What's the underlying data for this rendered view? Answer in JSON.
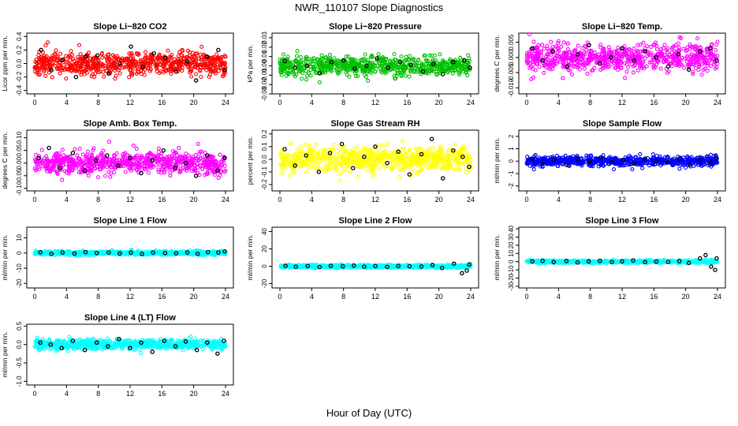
{
  "page": {
    "title": "NWR_110107  Slope Diagnostics",
    "xlabel": "Hour of Day (UTC)"
  },
  "chart_data": [
    {
      "type": "scatter",
      "title": "Slope Li−820 CO2",
      "ylabel": "Licor ppm per min.",
      "xlim": [
        0,
        24
      ],
      "ylim": [
        -0.45,
        0.45
      ],
      "xticks": [
        0,
        4,
        8,
        12,
        16,
        20,
        24
      ],
      "yticks": [
        -0.4,
        -0.2,
        0.0,
        0.2,
        0.4
      ],
      "ytick_labels": [
        "-0.4",
        "-0.2",
        "0.0",
        "0.2",
        "0.4"
      ],
      "color": "#ff0000",
      "spread": 0.16,
      "seed": 11,
      "series": [
        {
          "color": "#000000",
          "points": [
            [
              0.8,
              0.2
            ],
            [
              2.1,
              -0.1
            ],
            [
              3.5,
              0.05
            ],
            [
              5.2,
              -0.2
            ],
            [
              6.4,
              0.1
            ],
            [
              7.9,
              0.12
            ],
            [
              9.3,
              -0.15
            ],
            [
              10.7,
              0.0
            ],
            [
              12.1,
              0.25
            ],
            [
              13.6,
              -0.05
            ],
            [
              15.0,
              0.15
            ],
            [
              16.4,
              0.08
            ],
            [
              17.8,
              -0.12
            ],
            [
              19.2,
              0.03
            ],
            [
              20.3,
              -0.25
            ],
            [
              21.7,
              0.1
            ],
            [
              23.1,
              0.2
            ],
            [
              23.9,
              -0.1
            ]
          ]
        }
      ]
    },
    {
      "type": "scatter",
      "title": "Slope Li−820 Pressure",
      "ylabel": "kPa per min.",
      "xlim": [
        0,
        24
      ],
      "ylim": [
        -0.03,
        0.035
      ],
      "xticks": [
        0,
        4,
        8,
        12,
        16,
        20,
        24
      ],
      "yticks": [
        -0.03,
        -0.02,
        -0.01,
        0.0,
        0.01,
        0.02,
        0.03
      ],
      "ytick_labels": [
        "-0.03",
        "-0.02",
        "-0.01",
        "0.00",
        "0.01",
        "0.02",
        "0.03"
      ],
      "color": "#00c000",
      "spread": 0.009,
      "seed": 22,
      "series": [
        {
          "color": "#000000",
          "points": [
            [
              0.6,
              0.005
            ],
            [
              1.9,
              -0.002
            ],
            [
              3.4,
              0.0
            ],
            [
              5.0,
              -0.008
            ],
            [
              6.5,
              0.004
            ],
            [
              8.0,
              0.006
            ],
            [
              9.4,
              -0.003
            ],
            [
              10.9,
              0.0
            ],
            [
              12.2,
              0.008
            ],
            [
              13.6,
              -0.002
            ],
            [
              15.1,
              0.004
            ],
            [
              16.5,
              0.001
            ],
            [
              18.0,
              -0.006
            ],
            [
              19.3,
              0.002
            ],
            [
              20.5,
              -0.009
            ],
            [
              21.8,
              0.004
            ],
            [
              23.2,
              0.006
            ],
            [
              23.9,
              -0.002
            ]
          ]
        }
      ]
    },
    {
      "type": "scatter",
      "title": "Slope Li−820 Temp.",
      "ylabel": "degrees C per min.",
      "xlim": [
        0,
        24
      ],
      "ylim": [
        -0.012,
        0.008
      ],
      "xticks": [
        0,
        4,
        8,
        12,
        16,
        20,
        24
      ],
      "yticks": [
        -0.01,
        -0.005,
        0.0,
        0.005
      ],
      "ytick_labels": [
        "-0.010",
        "-0.005",
        "0.000",
        "0.005"
      ],
      "color": "#ff00ff",
      "spread": 0.004,
      "seed": 33,
      "series": [
        {
          "color": "#000000",
          "points": [
            [
              0.7,
              0.003
            ],
            [
              2.0,
              -0.001
            ],
            [
              3.3,
              0.002
            ],
            [
              5.1,
              -0.003
            ],
            [
              6.4,
              0.001
            ],
            [
              7.8,
              0.004
            ],
            [
              9.2,
              -0.002
            ],
            [
              10.6,
              0.0
            ],
            [
              12.0,
              0.003
            ],
            [
              13.5,
              -0.001
            ],
            [
              14.9,
              0.002
            ],
            [
              16.3,
              0.0
            ],
            [
              17.8,
              -0.003
            ],
            [
              19.1,
              0.001
            ],
            [
              20.4,
              -0.004
            ],
            [
              21.8,
              0.002
            ],
            [
              23.1,
              0.003
            ],
            [
              23.9,
              -0.001
            ]
          ]
        }
      ]
    },
    {
      "type": "scatter",
      "title": "Slope Amb. Box Temp.",
      "ylabel": "degrees C per min.",
      "xlim": [
        0,
        24
      ],
      "ylim": [
        -0.11,
        0.13
      ],
      "xticks": [
        0,
        4,
        8,
        12,
        16,
        20,
        24
      ],
      "yticks": [
        -0.1,
        -0.05,
        0.0,
        0.05,
        0.1
      ],
      "ytick_labels": [
        "-0.10",
        "-0.05",
        "0.00",
        "0.05",
        "0.10"
      ],
      "color": "#ff00ff",
      "spread": 0.04,
      "seed": 44,
      "series": [
        {
          "color": "#000000",
          "points": [
            [
              0.5,
              0.02
            ],
            [
              1.8,
              0.06
            ],
            [
              3.2,
              -0.02
            ],
            [
              4.8,
              0.04
            ],
            [
              6.3,
              -0.03
            ],
            [
              7.7,
              0.01
            ],
            [
              9.1,
              0.03
            ],
            [
              10.5,
              -0.01
            ],
            [
              12.0,
              0.02
            ],
            [
              13.4,
              -0.04
            ],
            [
              14.8,
              0.01
            ],
            [
              16.2,
              0.05
            ],
            [
              17.7,
              -0.02
            ],
            [
              19.0,
              0.0
            ],
            [
              20.3,
              -0.05
            ],
            [
              21.7,
              0.03
            ],
            [
              23.0,
              -0.03
            ],
            [
              23.9,
              0.02
            ]
          ]
        }
      ]
    },
    {
      "type": "scatter",
      "title": "Slope Gas Stream RH",
      "ylabel": "percent per min.",
      "xlim": [
        0,
        24
      ],
      "ylim": [
        -0.25,
        0.23
      ],
      "xticks": [
        0,
        4,
        8,
        12,
        16,
        20,
        24
      ],
      "yticks": [
        -0.2,
        -0.1,
        0.0,
        0.1,
        0.2
      ],
      "ytick_labels": [
        "-0.2",
        "-0.1",
        "0.0",
        "0.1",
        "0.2"
      ],
      "color": "#ffff00",
      "spread": 0.09,
      "seed": 55,
      "series": [
        {
          "color": "#000000",
          "points": [
            [
              0.6,
              0.08
            ],
            [
              1.9,
              -0.05
            ],
            [
              3.3,
              0.03
            ],
            [
              4.9,
              -0.1
            ],
            [
              6.3,
              0.05
            ],
            [
              7.8,
              0.12
            ],
            [
              9.2,
              -0.07
            ],
            [
              10.6,
              0.02
            ],
            [
              12.0,
              0.1
            ],
            [
              13.5,
              -0.03
            ],
            [
              14.9,
              0.06
            ],
            [
              16.3,
              -0.12
            ],
            [
              17.8,
              0.04
            ],
            [
              19.1,
              0.16
            ],
            [
              20.5,
              -0.15
            ],
            [
              21.8,
              0.07
            ],
            [
              23.0,
              0.02
            ],
            [
              23.8,
              -0.06
            ]
          ]
        }
      ]
    },
    {
      "type": "scatter",
      "title": "Slope Sample Flow",
      "ylabel": "ml/min per min.",
      "xlim": [
        0,
        24
      ],
      "ylim": [
        -2.4,
        2.5
      ],
      "xticks": [
        0,
        4,
        8,
        12,
        16,
        20,
        24
      ],
      "yticks": [
        -2,
        -1,
        0,
        1,
        2
      ],
      "ytick_labels": [
        "-2",
        "-1",
        "0",
        "1",
        "2"
      ],
      "color": "#0000ff",
      "spread": 0.35,
      "seed": 66,
      "series": [
        {
          "color": "#000000",
          "points": [
            [
              0.7,
              0.2
            ],
            [
              2.0,
              -0.2
            ],
            [
              3.4,
              0.1
            ],
            [
              5.0,
              -0.3
            ],
            [
              6.4,
              0.2
            ],
            [
              7.9,
              0.0
            ],
            [
              9.3,
              0.3
            ],
            [
              10.7,
              -0.1
            ],
            [
              12.1,
              0.1
            ],
            [
              13.5,
              -0.2
            ],
            [
              14.9,
              0.2
            ],
            [
              16.3,
              0.0
            ],
            [
              17.8,
              -0.1
            ],
            [
              19.2,
              0.2
            ],
            [
              20.5,
              -0.3
            ],
            [
              21.8,
              0.1
            ],
            [
              23.1,
              -0.1
            ],
            [
              23.9,
              0.2
            ]
          ]
        }
      ]
    },
    {
      "type": "scatter",
      "title": "Slope Line 1 Flow",
      "ylabel": "ml/min per min.",
      "xlim": [
        0,
        24
      ],
      "ylim": [
        -23,
        17
      ],
      "xticks": [
        0,
        4,
        8,
        12,
        16,
        20,
        24
      ],
      "yticks": [
        -20,
        -10,
        0,
        10
      ],
      "ytick_labels": [
        "-20",
        "-10",
        "0",
        "10"
      ],
      "color": "#00ffff",
      "spread": 1.2,
      "seed": 77,
      "series": [
        {
          "color": "#000000",
          "points": [
            [
              0.7,
              0.5
            ],
            [
              2.1,
              -0.5
            ],
            [
              3.5,
              0.3
            ],
            [
              5.0,
              -0.4
            ],
            [
              6.4,
              0.6
            ],
            [
              7.8,
              0.0
            ],
            [
              9.3,
              0.4
            ],
            [
              10.7,
              -0.3
            ],
            [
              12.1,
              0.2
            ],
            [
              13.5,
              -0.6
            ],
            [
              14.9,
              0.3
            ],
            [
              16.4,
              0.0
            ],
            [
              17.8,
              -0.2
            ],
            [
              19.2,
              0.4
            ],
            [
              20.5,
              -0.5
            ],
            [
              21.8,
              0.6
            ],
            [
              23.1,
              0.4
            ],
            [
              23.9,
              1.0
            ]
          ]
        }
      ]
    },
    {
      "type": "scatter",
      "title": "Slope Line 2 Flow",
      "ylabel": "ml/min per min.",
      "xlim": [
        0,
        24
      ],
      "ylim": [
        -25,
        45
      ],
      "xticks": [
        0,
        4,
        8,
        12,
        16,
        20,
        24
      ],
      "yticks": [
        -20,
        0,
        20,
        40
      ],
      "ytick_labels": [
        "-20",
        "0",
        "20",
        "40"
      ],
      "color": "#00ffff",
      "spread": 1.5,
      "seed": 88,
      "series": [
        {
          "color": "#000000",
          "points": [
            [
              0.7,
              0.5
            ],
            [
              2.0,
              -0.5
            ],
            [
              3.5,
              0.3
            ],
            [
              5.0,
              -1.0
            ],
            [
              6.4,
              0.5
            ],
            [
              7.9,
              0.0
            ],
            [
              9.3,
              0.8
            ],
            [
              10.6,
              -0.5
            ],
            [
              12.0,
              0.3
            ],
            [
              13.5,
              -0.8
            ],
            [
              14.9,
              0.4
            ],
            [
              16.3,
              0.0
            ],
            [
              17.8,
              -0.4
            ],
            [
              19.2,
              1.5
            ],
            [
              20.4,
              -2.0
            ],
            [
              21.9,
              3.0
            ],
            [
              22.9,
              -8.0
            ],
            [
              23.5,
              -5.0
            ],
            [
              23.8,
              2.0
            ]
          ]
        }
      ]
    },
    {
      "type": "scatter",
      "title": "Slope Line 3 Flow",
      "ylabel": "ml/min per min.",
      "xlim": [
        0,
        24
      ],
      "ylim": [
        -32,
        42
      ],
      "xticks": [
        0,
        4,
        8,
        12,
        16,
        20,
        24
      ],
      "yticks": [
        -30,
        -20,
        -10,
        0,
        10,
        20,
        30,
        40
      ],
      "ytick_labels": [
        "-30",
        "-20",
        "-10",
        "0",
        "10",
        "20",
        "30",
        "40"
      ],
      "color": "#00ffff",
      "spread": 1.5,
      "seed": 99,
      "series": [
        {
          "color": "#000000",
          "points": [
            [
              0.7,
              0.5
            ],
            [
              2.0,
              1.0
            ],
            [
              3.4,
              -0.5
            ],
            [
              5.0,
              0.8
            ],
            [
              6.4,
              -1.0
            ],
            [
              7.8,
              0.3
            ],
            [
              9.2,
              1.0
            ],
            [
              10.7,
              -0.4
            ],
            [
              12.0,
              0.5
            ],
            [
              13.4,
              1.5
            ],
            [
              14.9,
              -0.5
            ],
            [
              16.3,
              0.2
            ],
            [
              17.8,
              -0.3
            ],
            [
              19.2,
              0.7
            ],
            [
              20.4,
              -1.5
            ],
            [
              21.8,
              4.0
            ],
            [
              22.5,
              8.0
            ],
            [
              23.2,
              -6.0
            ],
            [
              23.7,
              -10.0
            ],
            [
              23.9,
              4.0
            ]
          ]
        }
      ]
    },
    {
      "type": "scatter",
      "title": "Slope Line 4 (LT) Flow",
      "ylabel": "ml/min per min.",
      "xlim": [
        0,
        24
      ],
      "ylim": [
        -1.1,
        0.55
      ],
      "xticks": [
        0,
        4,
        8,
        12,
        16,
        20,
        24
      ],
      "yticks": [
        -1.0,
        -0.5,
        0.0,
        0.5
      ],
      "ytick_labels": [
        "-1.0",
        "-0.5",
        "0.0",
        "0.5"
      ],
      "color": "#00ffff",
      "spread": 0.12,
      "seed": 111,
      "series": [
        {
          "color": "#000000",
          "points": [
            [
              0.7,
              0.05
            ],
            [
              2.0,
              0.0
            ],
            [
              3.4,
              -0.1
            ],
            [
              4.8,
              0.1
            ],
            [
              6.3,
              -0.15
            ],
            [
              7.8,
              0.05
            ],
            [
              9.2,
              -0.05
            ],
            [
              10.6,
              0.15
            ],
            [
              12.0,
              -0.1
            ],
            [
              13.4,
              0.05
            ],
            [
              14.8,
              -0.2
            ],
            [
              16.3,
              0.1
            ],
            [
              17.7,
              -0.05
            ],
            [
              19.0,
              0.08
            ],
            [
              20.4,
              -0.15
            ],
            [
              21.7,
              0.05
            ],
            [
              23.0,
              -0.25
            ],
            [
              23.8,
              0.1
            ]
          ]
        }
      ]
    }
  ]
}
